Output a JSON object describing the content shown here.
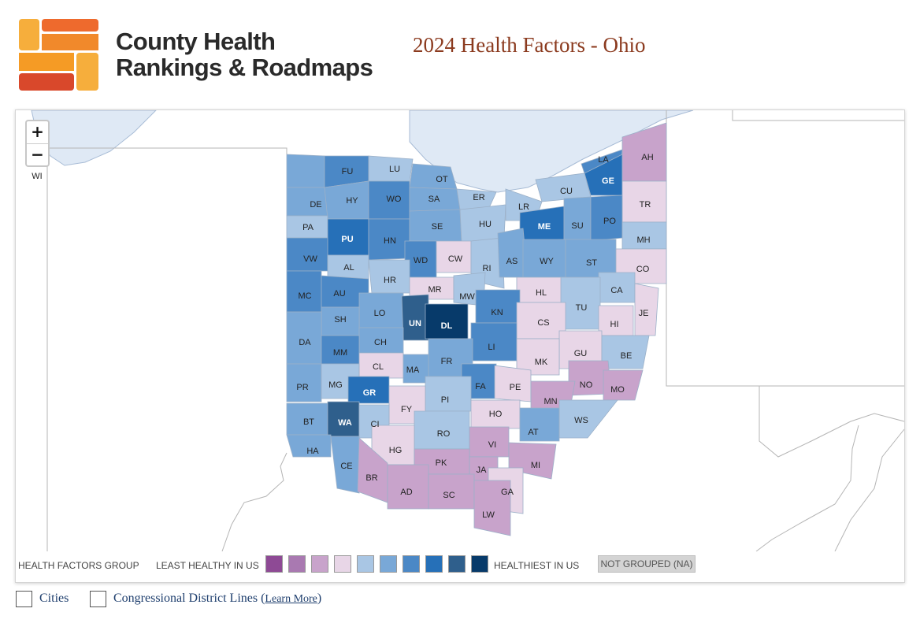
{
  "header": {
    "logo_line1": "County Health",
    "logo_line2": "Rankings & Roadmaps",
    "title": "2024 Health Factors - Ohio"
  },
  "zoom": {
    "in_label": "+",
    "out_label": "−"
  },
  "legend": {
    "group_label": "HEALTH FACTORS GROUP",
    "least_label": "LEAST HEALTHY IN US",
    "healthiest_label": "HEALTHIEST IN US",
    "na_label": "NOT GROUPED (NA)",
    "swatches": [
      "#8e4a95",
      "#a979b1",
      "#c8a3cb",
      "#e8d6e7",
      "#a9c6e4",
      "#79a8d7",
      "#4b88c6",
      "#2670b8",
      "#2f5f8c",
      "#073a6a"
    ]
  },
  "toggles": {
    "cities": "Cities",
    "districts": "Congressional District Lines (",
    "learn_more": "Learn More",
    "close_paren": ")"
  },
  "counties": [
    {
      "abbr": "WI",
      "group": 7
    },
    {
      "abbr": "FU",
      "group": 8
    },
    {
      "abbr": "LU",
      "group": 6
    },
    {
      "abbr": "OT",
      "group": 7
    },
    {
      "abbr": "DE",
      "group": 7
    },
    {
      "abbr": "HY",
      "group": 7
    },
    {
      "abbr": "WO",
      "group": 8
    },
    {
      "abbr": "SA",
      "group": 7
    },
    {
      "abbr": "ER",
      "group": 6
    },
    {
      "abbr": "LA",
      "group": 8
    },
    {
      "abbr": "GE",
      "group": 9
    },
    {
      "abbr": "AH",
      "group": 3
    },
    {
      "abbr": "CU",
      "group": 6
    },
    {
      "abbr": "TR",
      "group": 4
    },
    {
      "abbr": "PA",
      "group": 6
    },
    {
      "abbr": "PU",
      "group": 9
    },
    {
      "abbr": "HN",
      "group": 8
    },
    {
      "abbr": "SE",
      "group": 7
    },
    {
      "abbr": "HU",
      "group": 6
    },
    {
      "abbr": "LR",
      "group": 6
    },
    {
      "abbr": "ME",
      "group": 9
    },
    {
      "abbr": "SU",
      "group": 7
    },
    {
      "abbr": "PO",
      "group": 8
    },
    {
      "abbr": "MH",
      "group": 6
    },
    {
      "abbr": "VW",
      "group": 8
    },
    {
      "abbr": "AL",
      "group": 6
    },
    {
      "abbr": "WD",
      "group": 8
    },
    {
      "abbr": "CW",
      "group": 4
    },
    {
      "abbr": "RI",
      "group": 6
    },
    {
      "abbr": "AS",
      "group": 7
    },
    {
      "abbr": "WY",
      "group": 7
    },
    {
      "abbr": "ST",
      "group": 7
    },
    {
      "abbr": "CO",
      "group": 4
    },
    {
      "abbr": "HR",
      "group": 6
    },
    {
      "abbr": "MC",
      "group": 8
    },
    {
      "abbr": "AU",
      "group": 8
    },
    {
      "abbr": "MR",
      "group": 4
    },
    {
      "abbr": "MW",
      "group": 6
    },
    {
      "abbr": "HL",
      "group": 4
    },
    {
      "abbr": "CA",
      "group": 6
    },
    {
      "abbr": "LO",
      "group": 7
    },
    {
      "abbr": "SH",
      "group": 7
    },
    {
      "abbr": "UN",
      "group": 10
    },
    {
      "abbr": "DL",
      "group": 11
    },
    {
      "abbr": "KN",
      "group": 8
    },
    {
      "abbr": "TU",
      "group": 6
    },
    {
      "abbr": "JE",
      "group": 4
    },
    {
      "abbr": "CS",
      "group": 4
    },
    {
      "abbr": "HI",
      "group": 4
    },
    {
      "abbr": "DA",
      "group": 7
    },
    {
      "abbr": "CH",
      "group": 7
    },
    {
      "abbr": "LI",
      "group": 8
    },
    {
      "abbr": "MM",
      "group": 8
    },
    {
      "abbr": "FR",
      "group": 7
    },
    {
      "abbr": "GU",
      "group": 4
    },
    {
      "abbr": "BE",
      "group": 6
    },
    {
      "abbr": "MK",
      "group": 4
    },
    {
      "abbr": "CL",
      "group": 4
    },
    {
      "abbr": "MA",
      "group": 7
    },
    {
      "abbr": "PR",
      "group": 7
    },
    {
      "abbr": "MG",
      "group": 6
    },
    {
      "abbr": "GR",
      "group": 9
    },
    {
      "abbr": "FA",
      "group": 8
    },
    {
      "abbr": "PE",
      "group": 4
    },
    {
      "abbr": "NO",
      "group": 3
    },
    {
      "abbr": "MO",
      "group": 3
    },
    {
      "abbr": "PI",
      "group": 6
    },
    {
      "abbr": "MN",
      "group": 3
    },
    {
      "abbr": "FY",
      "group": 4
    },
    {
      "abbr": "BT",
      "group": 7
    },
    {
      "abbr": "WA",
      "group": 10
    },
    {
      "abbr": "CI",
      "group": 6
    },
    {
      "abbr": "HO",
      "group": 4
    },
    {
      "abbr": "WS",
      "group": 6
    },
    {
      "abbr": "AT",
      "group": 7
    },
    {
      "abbr": "RO",
      "group": 6
    },
    {
      "abbr": "HA",
      "group": 7
    },
    {
      "abbr": "HG",
      "group": 4
    },
    {
      "abbr": "VI",
      "group": 3
    },
    {
      "abbr": "PK",
      "group": 3
    },
    {
      "abbr": "CE",
      "group": 7
    },
    {
      "abbr": "BR",
      "group": 3
    },
    {
      "abbr": "JA",
      "group": 3
    },
    {
      "abbr": "MI",
      "group": 3
    },
    {
      "abbr": "AD",
      "group": 3
    },
    {
      "abbr": "SC",
      "group": 3
    },
    {
      "abbr": "GA",
      "group": 4
    },
    {
      "abbr": "LW",
      "group": 3
    }
  ],
  "group_colors": {
    "3": "#c8a3cb",
    "4": "#e8d6e7",
    "6": "#a9c6e4",
    "7": "#79a8d7",
    "8": "#4b88c6",
    "9": "#2670b8",
    "10": "#2f5f8c",
    "11": "#073a6a"
  },
  "water_color": "#dfe9f5"
}
